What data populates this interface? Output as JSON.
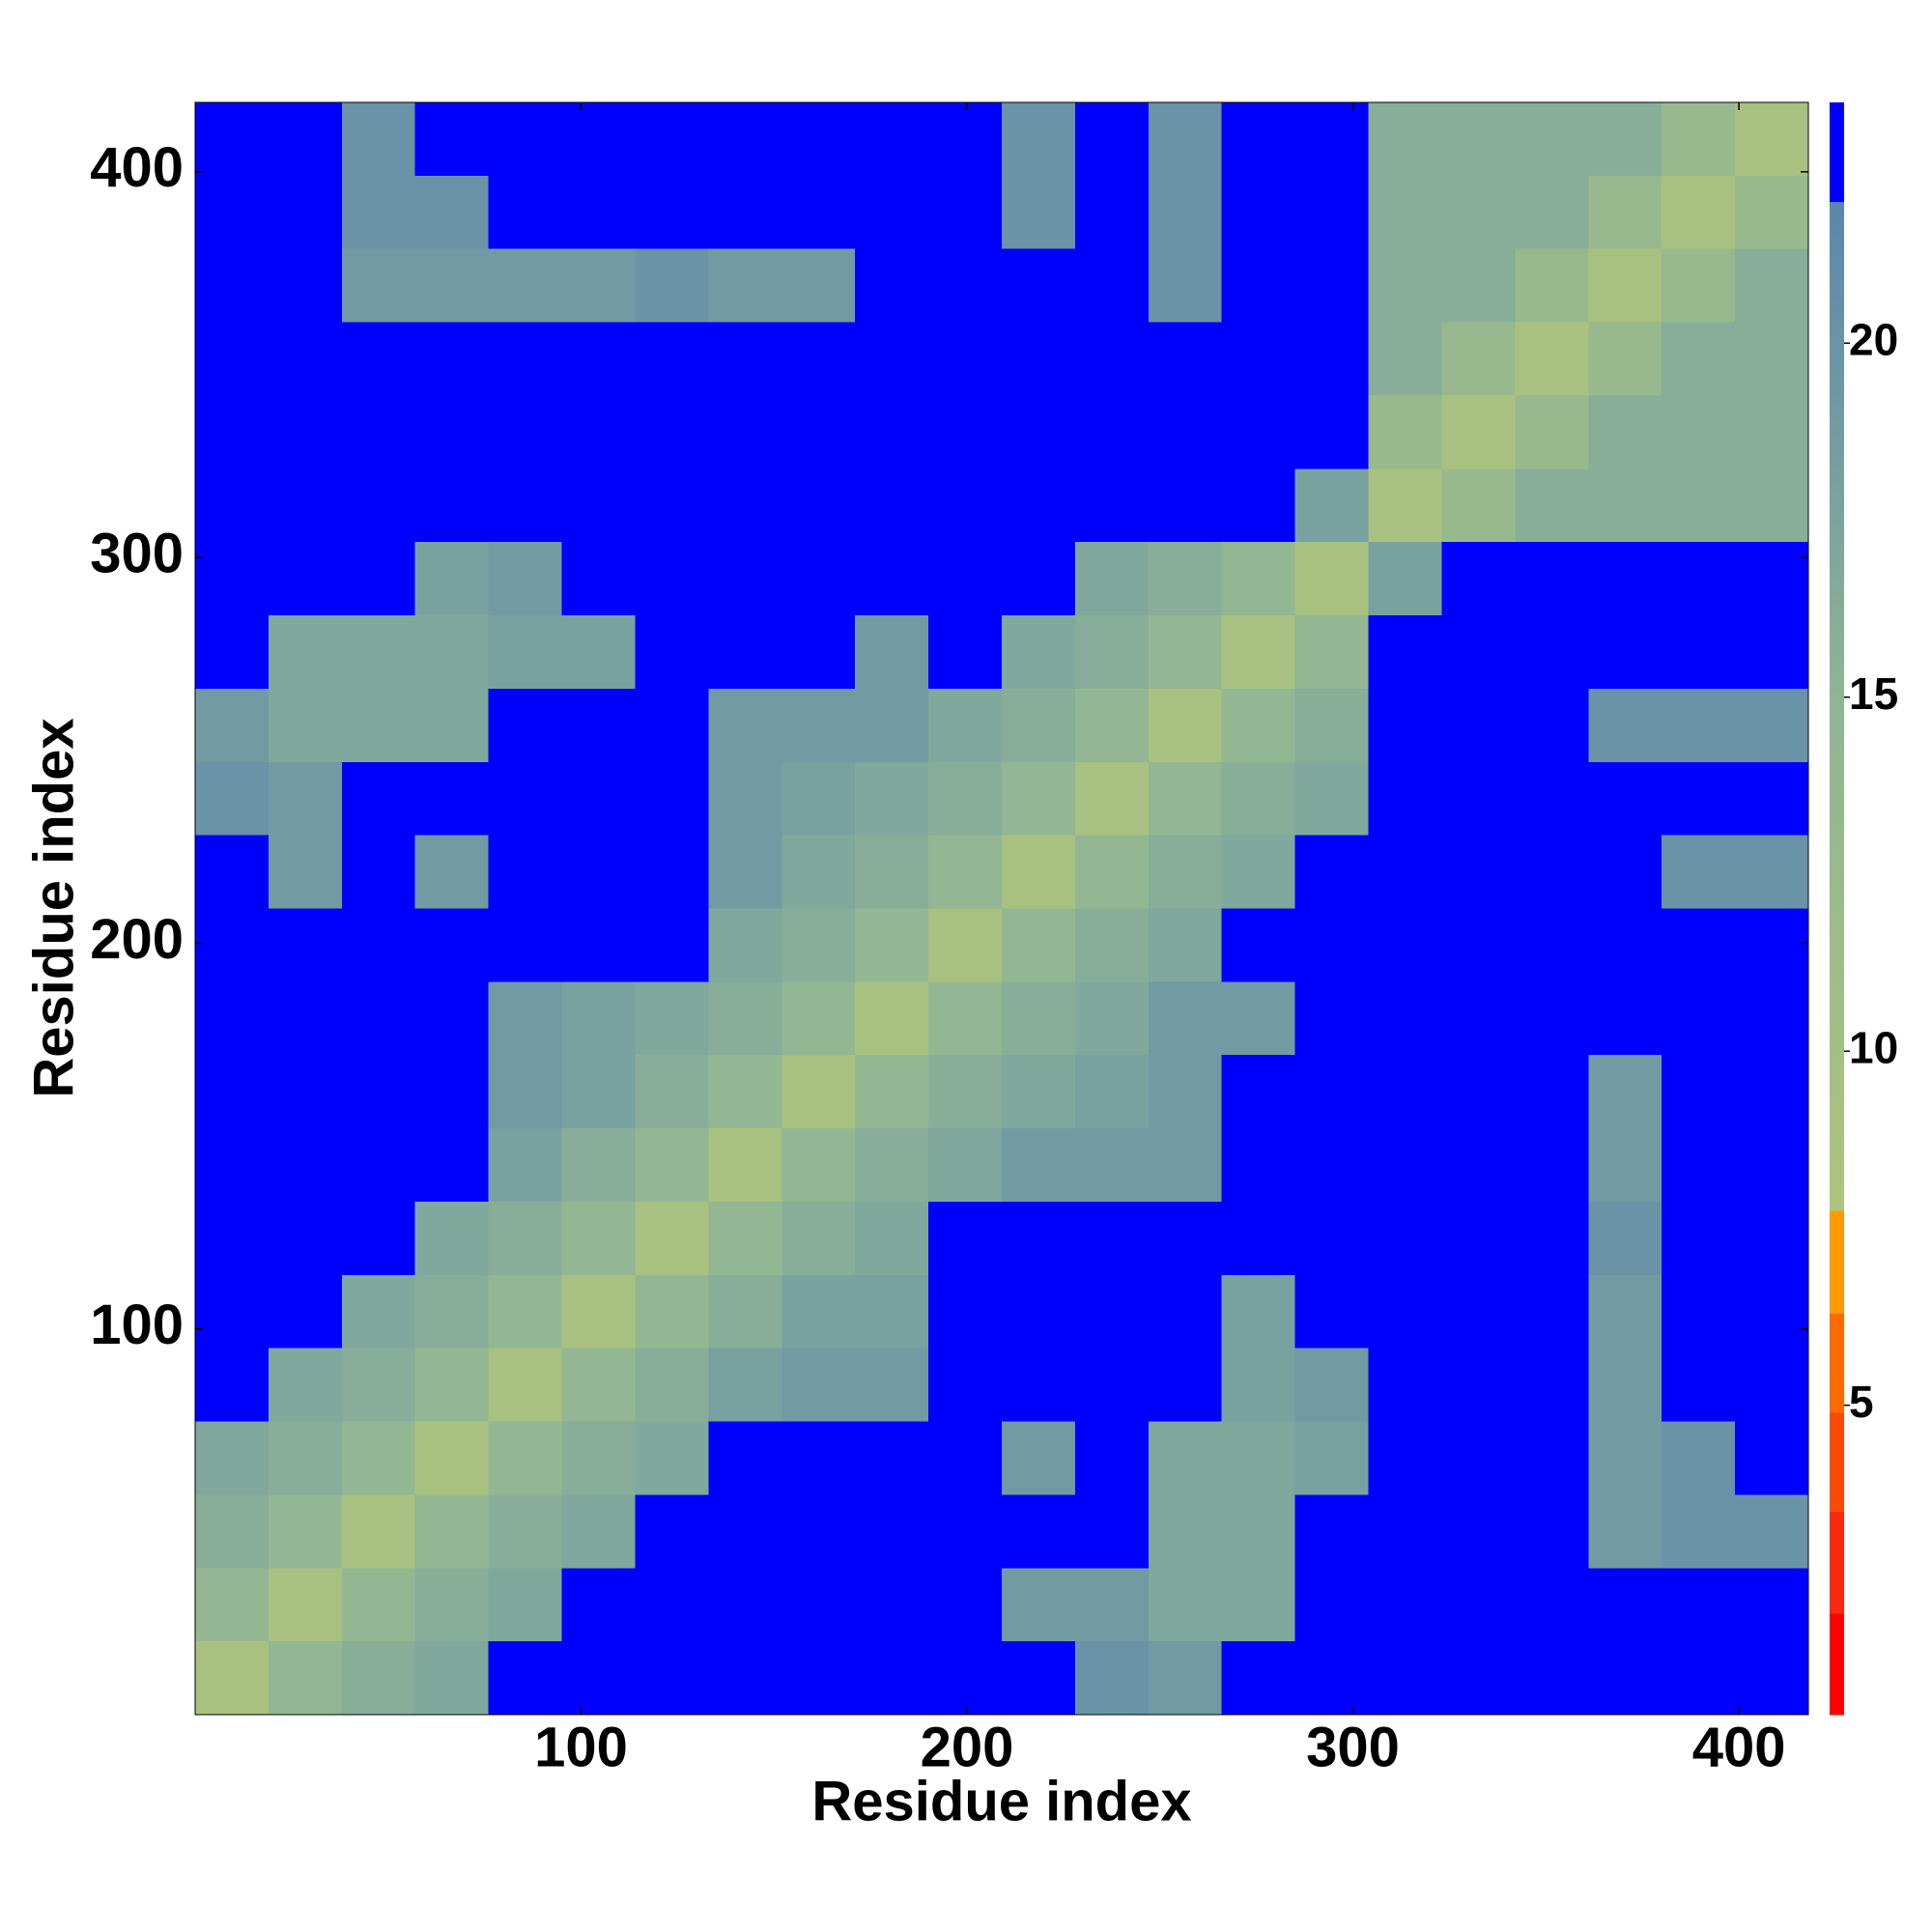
{
  "chart_data": {
    "type": "heatmap",
    "x_label": "Residue index",
    "y_label": "Residue index",
    "xlim": [
      0,
      418
    ],
    "ylim": [
      0,
      418
    ],
    "xticks": [
      100,
      200,
      300,
      400
    ],
    "yticks": [
      100,
      200,
      300,
      400
    ],
    "x_bins": [
      0,
      19,
      38,
      57,
      76,
      95,
      114,
      133,
      152,
      171,
      190,
      209,
      228,
      247,
      266,
      285,
      304,
      323,
      342,
      361,
      380,
      399,
      418
    ],
    "y_bins": [
      0,
      19,
      38,
      57,
      76,
      95,
      114,
      133,
      152,
      171,
      190,
      209,
      228,
      247,
      266,
      285,
      304,
      323,
      342,
      361,
      380,
      399,
      418
    ],
    "z": [
      [
        9,
        14,
        16,
        17,
        23,
        23,
        23,
        23,
        23,
        23,
        23,
        23,
        20,
        19,
        23,
        23,
        23,
        23,
        23,
        23,
        23,
        23
      ],
      [
        14,
        9,
        14,
        16,
        17,
        23,
        23,
        23,
        23,
        23,
        23,
        19,
        19,
        17,
        17,
        23,
        23,
        23,
        23,
        23,
        23,
        23
      ],
      [
        16,
        14,
        9,
        14,
        16,
        17,
        23,
        23,
        23,
        23,
        23,
        23,
        23,
        17,
        17,
        23,
        23,
        23,
        23,
        19,
        20,
        20
      ],
      [
        17,
        16,
        14,
        9,
        14,
        16,
        17,
        23,
        23,
        23,
        23,
        19,
        23,
        17,
        17,
        18,
        23,
        23,
        23,
        19,
        20,
        23
      ],
      [
        23,
        17,
        16,
        14,
        9,
        14,
        16,
        18,
        19,
        19,
        23,
        23,
        23,
        23,
        18,
        19,
        23,
        23,
        23,
        19,
        23,
        23
      ],
      [
        23,
        23,
        17,
        16,
        14,
        9,
        14,
        16,
        18,
        18,
        23,
        23,
        23,
        23,
        18,
        23,
        23,
        23,
        23,
        19,
        23,
        23
      ],
      [
        23,
        23,
        23,
        17,
        16,
        14,
        9,
        14,
        16,
        17,
        23,
        23,
        23,
        23,
        23,
        23,
        23,
        23,
        23,
        20,
        23,
        23
      ],
      [
        23,
        23,
        23,
        23,
        18,
        16,
        14,
        9,
        14,
        16,
        17,
        19,
        19,
        19,
        23,
        23,
        23,
        23,
        23,
        19,
        23,
        23
      ],
      [
        23,
        23,
        23,
        23,
        19,
        18,
        16,
        14,
        9,
        14,
        16,
        17,
        18,
        19,
        23,
        23,
        23,
        23,
        23,
        19,
        23,
        23
      ],
      [
        23,
        23,
        23,
        23,
        19,
        18,
        17,
        16,
        14,
        9,
        14,
        16,
        17,
        19,
        19,
        23,
        23,
        23,
        23,
        23,
        23,
        23
      ],
      [
        23,
        23,
        23,
        23,
        23,
        23,
        23,
        17,
        16,
        14,
        9,
        14,
        16,
        17,
        23,
        23,
        23,
        23,
        23,
        23,
        23,
        23
      ],
      [
        23,
        19,
        23,
        19,
        23,
        23,
        23,
        19,
        17,
        16,
        14,
        9,
        14,
        16,
        17,
        23,
        23,
        23,
        23,
        23,
        20,
        20
      ],
      [
        20,
        19,
        23,
        23,
        23,
        23,
        23,
        19,
        18,
        17,
        16,
        14,
        9,
        14,
        16,
        17,
        23,
        23,
        23,
        23,
        23,
        23
      ],
      [
        19,
        17,
        17,
        17,
        23,
        23,
        23,
        19,
        19,
        19,
        17,
        16,
        14,
        9,
        14,
        16,
        23,
        23,
        23,
        20,
        20,
        20
      ],
      [
        23,
        17,
        17,
        17,
        18,
        18,
        23,
        23,
        23,
        19,
        23,
        17,
        16,
        14,
        9,
        14,
        23,
        23,
        23,
        23,
        23,
        23
      ],
      [
        23,
        23,
        23,
        18,
        19,
        23,
        23,
        23,
        23,
        23,
        23,
        23,
        17,
        16,
        14,
        9,
        18,
        23,
        23,
        23,
        23,
        23
      ],
      [
        23,
        23,
        23,
        23,
        23,
        23,
        23,
        23,
        23,
        23,
        23,
        23,
        23,
        23,
        23,
        18,
        9,
        13,
        16,
        16,
        16,
        16
      ],
      [
        23,
        23,
        23,
        23,
        23,
        23,
        23,
        23,
        23,
        23,
        23,
        23,
        23,
        23,
        23,
        23,
        13,
        9,
        13,
        16,
        16,
        16
      ],
      [
        23,
        23,
        23,
        23,
        23,
        23,
        23,
        23,
        23,
        23,
        23,
        23,
        23,
        23,
        23,
        23,
        16,
        13,
        9,
        13,
        16,
        16
      ],
      [
        23,
        23,
        19,
        19,
        19,
        19,
        20,
        19,
        19,
        23,
        23,
        23,
        23,
        20,
        23,
        23,
        16,
        16,
        13,
        9,
        13,
        16
      ],
      [
        23,
        23,
        20,
        20,
        23,
        23,
        23,
        23,
        23,
        23,
        23,
        20,
        23,
        20,
        23,
        23,
        16,
        16,
        16,
        13,
        9,
        13
      ],
      [
        23,
        23,
        20,
        23,
        23,
        23,
        23,
        23,
        23,
        23,
        23,
        20,
        23,
        20,
        23,
        23,
        16,
        16,
        16,
        16,
        13,
        9
      ]
    ],
    "clim": [
      0.63,
      23.4
    ],
    "colorbar_ticks": [
      5,
      10,
      15,
      20
    ],
    "colorscale": [
      {
        "value": 0.63,
        "color": "#ff0000"
      },
      {
        "value": 2.06,
        "color": "#ff0000"
      },
      {
        "value": 2.06,
        "color": "#f62a10"
      },
      {
        "value": 3.5,
        "color": "#f62a10"
      },
      {
        "value": 3.5,
        "color": "#fa4a08"
      },
      {
        "value": 4.9,
        "color": "#fa4a08"
      },
      {
        "value": 4.9,
        "color": "#ff6a00"
      },
      {
        "value": 6.3,
        "color": "#ff6a00"
      },
      {
        "value": 6.3,
        "color": "#ff9a00"
      },
      {
        "value": 7.75,
        "color": "#ff9a00"
      },
      {
        "value": 7.75,
        "color": "#aec47c"
      },
      {
        "value": 15,
        "color": "#8fb595"
      },
      {
        "value": 22,
        "color": "#5b86ae"
      },
      {
        "value": 22,
        "color": "#0000ff"
      },
      {
        "value": 23.4,
        "color": "#0000ff"
      }
    ]
  }
}
